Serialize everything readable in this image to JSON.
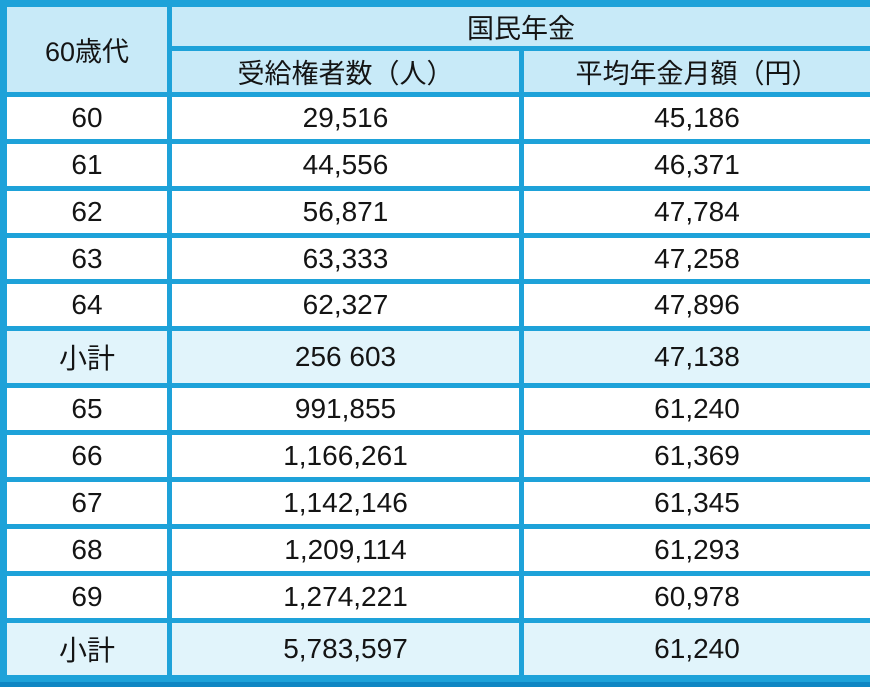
{
  "colors": {
    "border": "#1ea2d9",
    "border-dark": "#0f86c3",
    "header-bg": "#c8eaf8",
    "subtotal-bg": "#e1f4fb",
    "row-bg": "#ffffff",
    "text": "#141414"
  },
  "chart_data": {
    "type": "table",
    "title": "国民年金",
    "corner_label": "60歳代",
    "column_headers": [
      "受給権者数（人）",
      "平均年金月額（円）"
    ],
    "rows": [
      {
        "age": "60",
        "recipients": "29,516",
        "monthly_average": "45,186",
        "is_subtotal": false
      },
      {
        "age": "61",
        "recipients": "44,556",
        "monthly_average": "46,371",
        "is_subtotal": false
      },
      {
        "age": "62",
        "recipients": "56,871",
        "monthly_average": "47,784",
        "is_subtotal": false
      },
      {
        "age": "63",
        "recipients": "63,333",
        "monthly_average": "47,258",
        "is_subtotal": false
      },
      {
        "age": "64",
        "recipients": "62,327",
        "monthly_average": "47,896",
        "is_subtotal": false
      },
      {
        "age": "小計",
        "recipients": "256 603",
        "monthly_average": "47,138",
        "is_subtotal": true
      },
      {
        "age": "65",
        "recipients": "991,855",
        "monthly_average": "61,240",
        "is_subtotal": false
      },
      {
        "age": "66",
        "recipients": "1,166,261",
        "monthly_average": "61,369",
        "is_subtotal": false
      },
      {
        "age": "67",
        "recipients": "1,142,146",
        "monthly_average": "61,345",
        "is_subtotal": false
      },
      {
        "age": "68",
        "recipients": "1,209,114",
        "monthly_average": "61,293",
        "is_subtotal": false
      },
      {
        "age": "69",
        "recipients": "1,274,221",
        "monthly_average": "60,978",
        "is_subtotal": false
      },
      {
        "age": "小計",
        "recipients": "5,783,597",
        "monthly_average": "61,240",
        "is_subtotal": true
      }
    ]
  }
}
